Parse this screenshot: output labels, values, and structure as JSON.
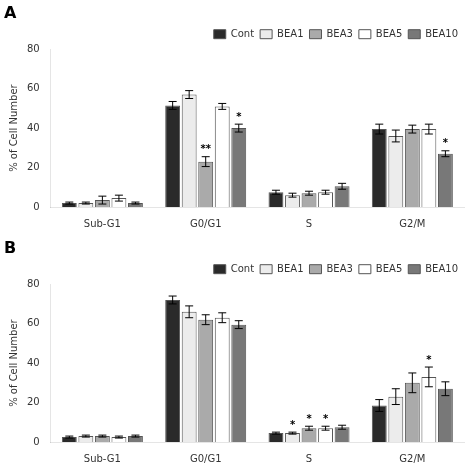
{
  "chart_data": [
    {
      "type": "bar",
      "title": "A",
      "categories": [
        "Sub-G1",
        "G0/G1",
        "S",
        "G2/M"
      ],
      "series": [
        {
          "name": "Cont",
          "color": "#2a2a2a",
          "values": [
            2.0,
            51.5,
            7.5,
            39.5
          ],
          "errors": [
            0.5,
            2.0,
            1.0,
            2.5
          ],
          "annotations": [
            null,
            null,
            null,
            null
          ]
        },
        {
          "name": "BEA1",
          "color": "#ececec",
          "values": [
            2.0,
            57.0,
            6.0,
            36.0
          ],
          "errors": [
            0.5,
            2.0,
            1.0,
            3.0
          ],
          "annotations": [
            null,
            null,
            null,
            null
          ]
        },
        {
          "name": "BEA3",
          "color": "#aaaaaa",
          "values": [
            3.5,
            23.0,
            7.0,
            39.5
          ],
          "errors": [
            2.0,
            2.5,
            1.0,
            2.0
          ],
          "annotations": [
            null,
            "**",
            null,
            null
          ]
        },
        {
          "name": "BEA5",
          "color": "#ffffff",
          "values": [
            4.5,
            51.0,
            7.5,
            39.5
          ],
          "errors": [
            1.5,
            1.5,
            1.0,
            2.5
          ],
          "annotations": [
            null,
            null,
            null,
            null
          ]
        },
        {
          "name": "BEA10",
          "color": "#787878",
          "values": [
            2.0,
            40.0,
            10.5,
            27.0
          ],
          "errors": [
            0.5,
            2.0,
            1.5,
            1.5
          ],
          "annotations": [
            null,
            "*",
            null,
            "*"
          ]
        }
      ],
      "ylabel": "% of Cell Number",
      "ylim": [
        0,
        80
      ],
      "yticks": [
        0,
        20,
        40,
        60,
        80
      ],
      "grid": false,
      "legend": "upper right"
    },
    {
      "type": "bar",
      "title": "B",
      "categories": [
        "Sub-G1",
        "G0/G1",
        "S",
        "G2/M"
      ],
      "series": [
        {
          "name": "Cont",
          "color": "#2a2a2a",
          "values": [
            2.5,
            72.0,
            4.5,
            18.5
          ],
          "errors": [
            0.5,
            2.0,
            0.5,
            3.0
          ],
          "annotations": [
            null,
            null,
            null,
            null
          ]
        },
        {
          "name": "BEA1",
          "color": "#ececec",
          "values": [
            3.0,
            66.0,
            4.5,
            23.0
          ],
          "errors": [
            0.5,
            3.0,
            0.5,
            4.0
          ],
          "annotations": [
            null,
            null,
            "*",
            null
          ]
        },
        {
          "name": "BEA3",
          "color": "#aaaaaa",
          "values": [
            3.0,
            62.0,
            7.0,
            30.0
          ],
          "errors": [
            0.5,
            2.5,
            1.0,
            5.0
          ],
          "annotations": [
            null,
            null,
            "*",
            null
          ]
        },
        {
          "name": "BEA5",
          "color": "#ffffff",
          "values": [
            2.5,
            63.0,
            7.0,
            33.0
          ],
          "errors": [
            0.5,
            2.5,
            1.0,
            5.0
          ],
          "annotations": [
            null,
            null,
            "*",
            "*"
          ]
        },
        {
          "name": "BEA10",
          "color": "#787878",
          "values": [
            3.0,
            59.5,
            7.5,
            27.0
          ],
          "errors": [
            0.5,
            2.0,
            1.0,
            3.5
          ],
          "annotations": [
            null,
            null,
            null,
            null
          ]
        }
      ],
      "ylabel": "% of Cell Number",
      "ylim": [
        0,
        80
      ],
      "yticks": [
        0,
        20,
        40,
        60,
        80
      ],
      "grid": false,
      "legend": "upper right"
    }
  ]
}
